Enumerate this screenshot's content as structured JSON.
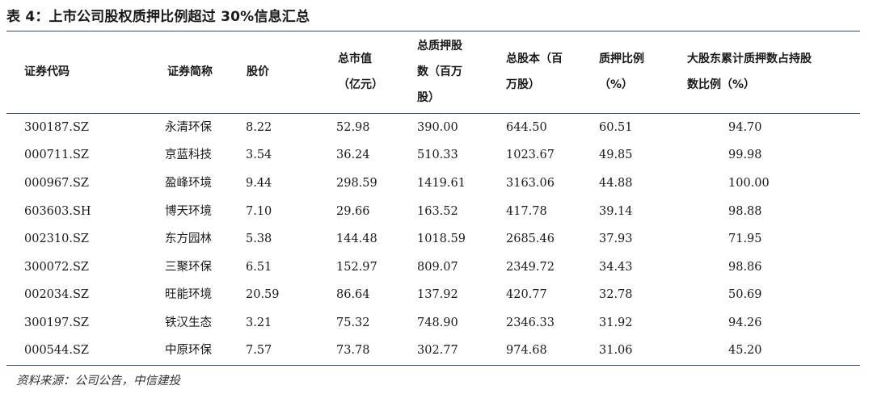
{
  "title": "表 4：上市公司股权质押比例超过 30%信息汇总",
  "headers": {
    "code": "证券代码",
    "name": "证券简称",
    "price": "股价",
    "mktcap": [
      "总市值",
      "（亿元）"
    ],
    "pledged": [
      "总质押股",
      "数（百万",
      "股）"
    ],
    "total_shares": [
      "总股本（百",
      "万股）"
    ],
    "pledge_ratio": [
      "质押比例",
      "（%）"
    ],
    "holder_ratio": [
      "大股东累计质押数占持股",
      "数比例（%）"
    ]
  },
  "rows": [
    {
      "code": "300187.SZ",
      "name": "永清环保",
      "price": "8.22",
      "mktcap": "52.98",
      "pledged": "390.00",
      "total_shares": "644.50",
      "pledge_ratio": "60.51",
      "holder_ratio": "94.70"
    },
    {
      "code": "000711.SZ",
      "name": "京蓝科技",
      "price": "3.54",
      "mktcap": "36.24",
      "pledged": "510.33",
      "total_shares": "1023.67",
      "pledge_ratio": "49.85",
      "holder_ratio": "99.98"
    },
    {
      "code": "000967.SZ",
      "name": "盈峰环境",
      "price": "9.44",
      "mktcap": "298.59",
      "pledged": "1419.61",
      "total_shares": "3163.06",
      "pledge_ratio": "44.88",
      "holder_ratio": "100.00"
    },
    {
      "code": "603603.SH",
      "name": "博天环境",
      "price": "7.10",
      "mktcap": "29.66",
      "pledged": "163.52",
      "total_shares": "417.78",
      "pledge_ratio": "39.14",
      "holder_ratio": "98.88"
    },
    {
      "code": "002310.SZ",
      "name": "东方园林",
      "price": "5.38",
      "mktcap": "144.48",
      "pledged": "1018.59",
      "total_shares": "2685.46",
      "pledge_ratio": "37.93",
      "holder_ratio": "71.95"
    },
    {
      "code": "300072.SZ",
      "name": "三聚环保",
      "price": "6.51",
      "mktcap": "152.97",
      "pledged": "809.07",
      "total_shares": "2349.72",
      "pledge_ratio": "34.43",
      "holder_ratio": "98.86"
    },
    {
      "code": "002034.SZ",
      "name": "旺能环境",
      "price": "20.59",
      "mktcap": "86.64",
      "pledged": "137.92",
      "total_shares": "420.77",
      "pledge_ratio": "32.78",
      "holder_ratio": "50.69"
    },
    {
      "code": "300197.SZ",
      "name": "铁汉生态",
      "price": "3.21",
      "mktcap": "75.32",
      "pledged": "748.90",
      "total_shares": "2346.33",
      "pledge_ratio": "31.92",
      "holder_ratio": "94.26"
    },
    {
      "code": "000544.SZ",
      "name": "中原环保",
      "price": "7.57",
      "mktcap": "73.78",
      "pledged": "302.77",
      "total_shares": "974.68",
      "pledge_ratio": "31.06",
      "holder_ratio": "45.20"
    }
  ],
  "source": "资料来源：公司公告，中信建投"
}
